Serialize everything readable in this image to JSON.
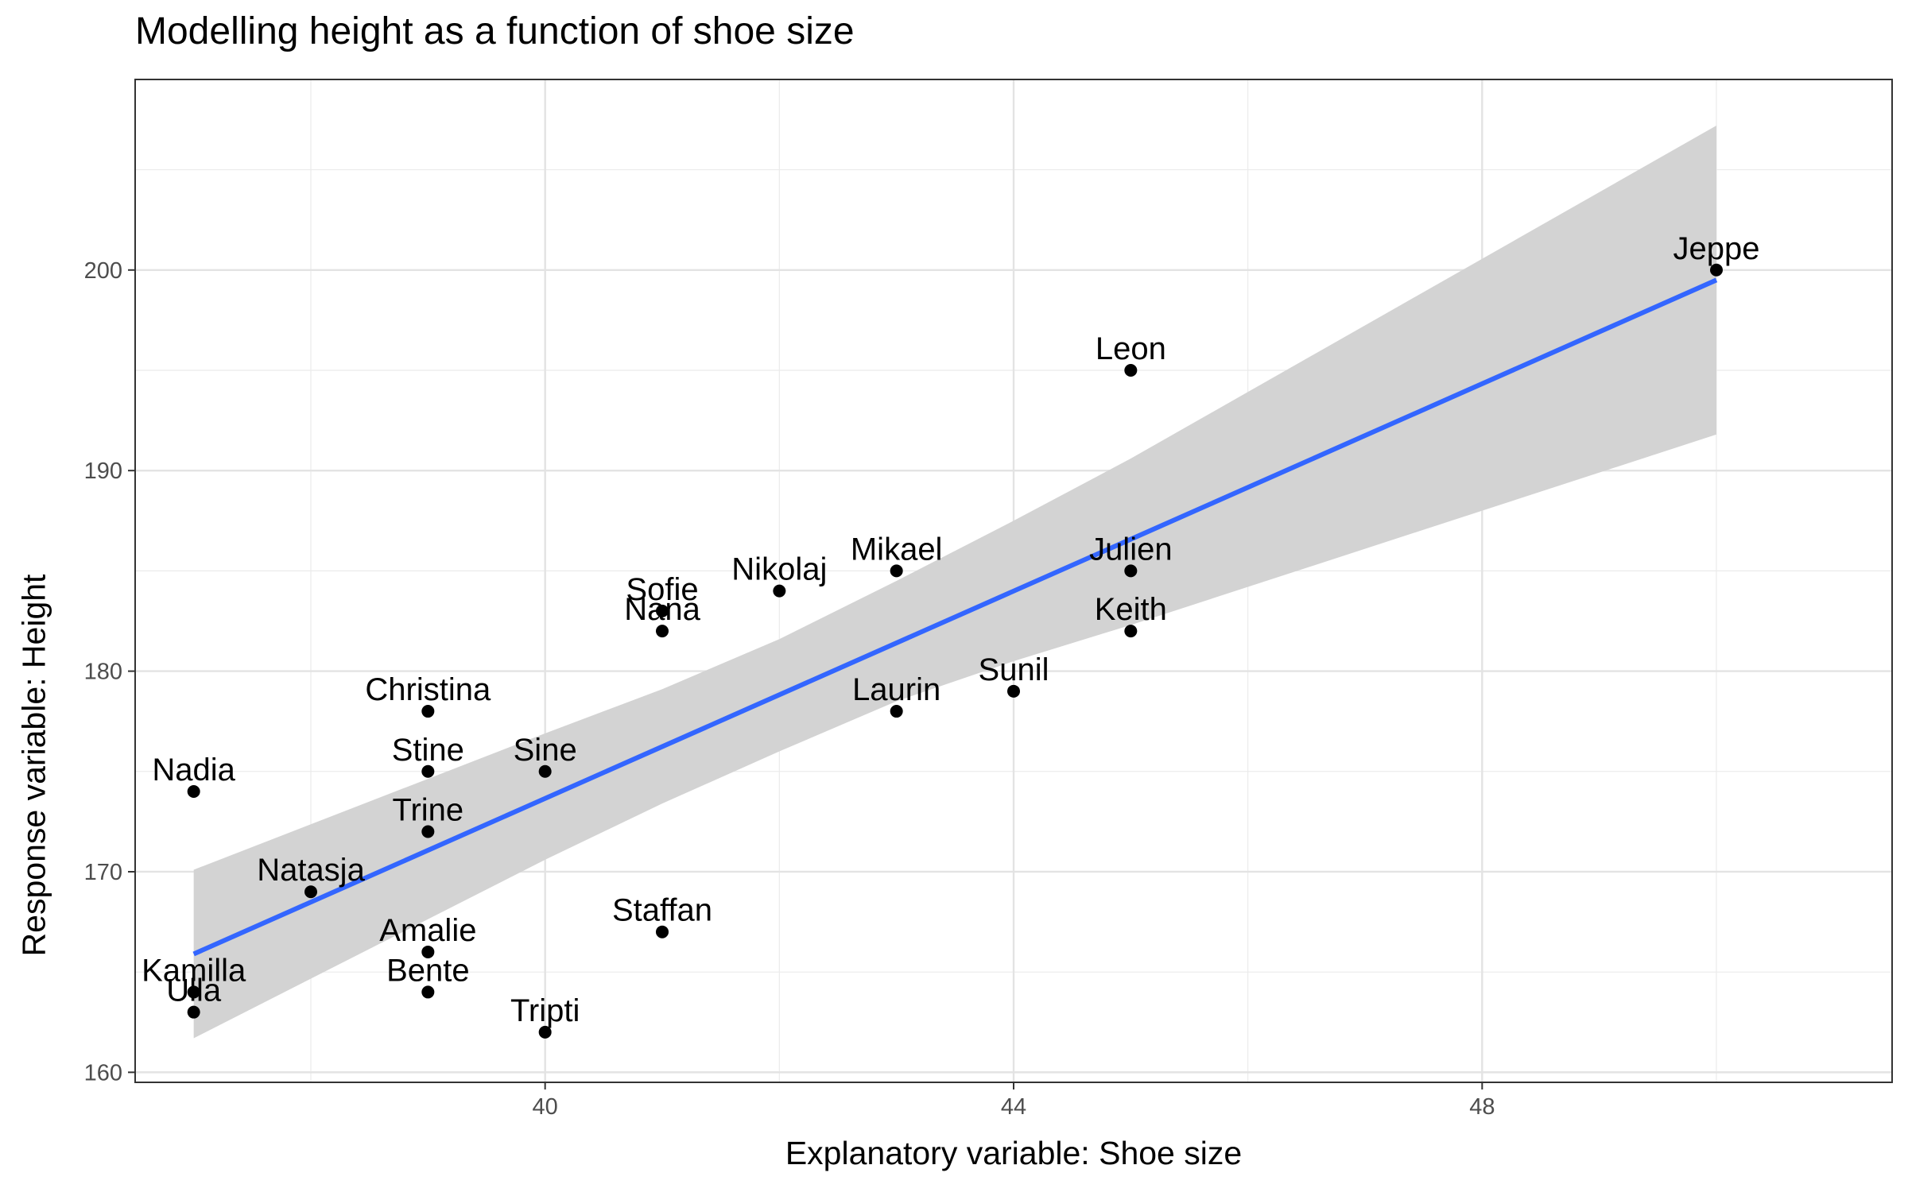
{
  "chart_data": {
    "type": "scatter",
    "title": "Modelling height as a function of shoe size",
    "xlabel": "Explanatory variable: Shoe size",
    "ylabel": "Response variable: Height",
    "xlim": [
      36.5,
      51.5
    ],
    "ylim": [
      159.5,
      209.5
    ],
    "x_ticks": [
      40,
      44,
      48
    ],
    "y_ticks": [
      160,
      170,
      180,
      190,
      200
    ],
    "x_minor_ticks": [
      38,
      42,
      46,
      50
    ],
    "y_minor_ticks": [
      165,
      175,
      185,
      195,
      205
    ],
    "grid": true,
    "point_color": "#000000",
    "line_color": "#3366FF",
    "band_color": "#D3D3D3",
    "points": [
      {
        "label": "Jeppe",
        "x": 50,
        "y": 200
      },
      {
        "label": "Leon",
        "x": 45,
        "y": 195
      },
      {
        "label": "Julien",
        "x": 45,
        "y": 185
      },
      {
        "label": "Keith",
        "x": 45,
        "y": 182
      },
      {
        "label": "Mikael",
        "x": 43,
        "y": 185
      },
      {
        "label": "Nikolaj",
        "x": 42,
        "y": 184
      },
      {
        "label": "Sofie",
        "x": 41,
        "y": 183
      },
      {
        "label": "Nana",
        "x": 41,
        "y": 182
      },
      {
        "label": "Sunil",
        "x": 44,
        "y": 179
      },
      {
        "label": "Laurin",
        "x": 43,
        "y": 178
      },
      {
        "label": "Christina",
        "x": 39,
        "y": 178
      },
      {
        "label": "Stine",
        "x": 39,
        "y": 175
      },
      {
        "label": "Sine",
        "x": 40,
        "y": 175
      },
      {
        "label": "Nadia",
        "x": 37,
        "y": 174
      },
      {
        "label": "Trine",
        "x": 39,
        "y": 172
      },
      {
        "label": "Natasja",
        "x": 38,
        "y": 169
      },
      {
        "label": "Staffan",
        "x": 41,
        "y": 167
      },
      {
        "label": "Amalie",
        "x": 39,
        "y": 166
      },
      {
        "label": "Kamilla",
        "x": 37,
        "y": 164
      },
      {
        "label": "Bente",
        "x": 39,
        "y": 164
      },
      {
        "label": "Ulla",
        "x": 37,
        "y": 163
      },
      {
        "label": "Tripti",
        "x": 40,
        "y": 162
      }
    ],
    "regression": {
      "x": [
        37,
        50
      ],
      "y": [
        165.9,
        199.5
      ]
    },
    "confidence_band": {
      "x": [
        37,
        40,
        41,
        42,
        43,
        44,
        45,
        50
      ],
      "lower": [
        161.7,
        170.6,
        173.4,
        176.0,
        178.5,
        180.5,
        182.3,
        191.8
      ],
      "upper": [
        170.1,
        176.9,
        179.1,
        181.6,
        184.5,
        187.5,
        190.6,
        207.2
      ]
    }
  }
}
